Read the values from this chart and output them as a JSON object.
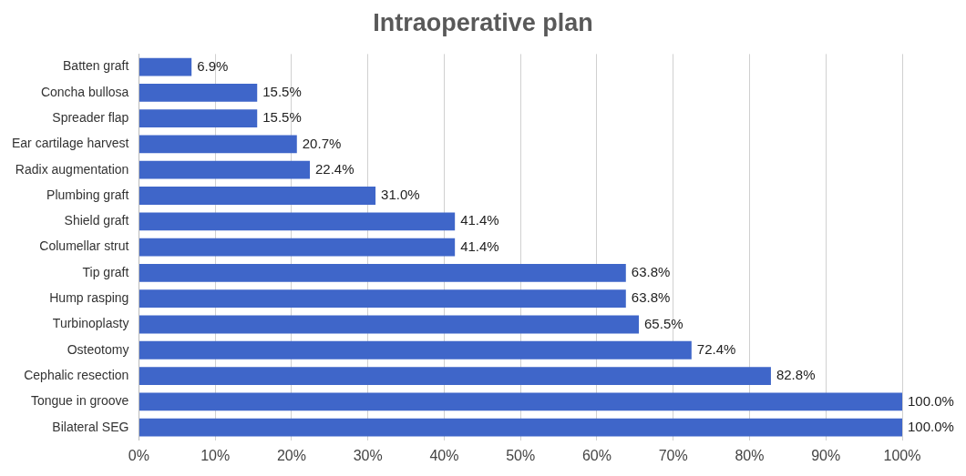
{
  "chart_data": {
    "type": "bar",
    "orientation": "horizontal",
    "title": "Intraoperative plan",
    "categories": [
      "Batten graft",
      "Concha bullosa",
      "Spreader flap",
      "Ear cartilage harvest",
      "Radix augmentation",
      "Plumbing graft",
      "Shield graft",
      "Columellar strut",
      "Tip graft",
      "Hump rasping",
      "Turbinoplasty",
      "Osteotomy",
      "Cephalic resection",
      "Tongue in groove",
      "Bilateral SEG"
    ],
    "values": [
      6.9,
      15.5,
      15.5,
      20.7,
      22.4,
      31.0,
      41.4,
      41.4,
      63.8,
      63.8,
      65.5,
      72.4,
      82.8,
      100.0,
      100.0
    ],
    "value_labels": [
      "6.9%",
      "15.5%",
      "15.5%",
      "20.7%",
      "22.4%",
      "31.0%",
      "41.4%",
      "41.4%",
      "63.8%",
      "63.8%",
      "65.5%",
      "72.4%",
      "82.8%",
      "100.0%",
      "100.0%"
    ],
    "color": "#3f66c9",
    "xlim": [
      0,
      100
    ],
    "xticks": [
      {
        "value": 0,
        "label": "0%"
      },
      {
        "value": 10,
        "label": "10%"
      },
      {
        "value": 20,
        "label": "20%"
      },
      {
        "value": 30,
        "label": "30%"
      },
      {
        "value": 40,
        "label": "40%"
      },
      {
        "value": 50,
        "label": "50%"
      },
      {
        "value": 60,
        "label": "60%"
      },
      {
        "value": 70,
        "label": "70%"
      },
      {
        "value": 80,
        "label": "80%"
      },
      {
        "value": 90,
        "label": "90%"
      },
      {
        "value": 100,
        "label": "100%"
      }
    ],
    "grid": "x"
  }
}
